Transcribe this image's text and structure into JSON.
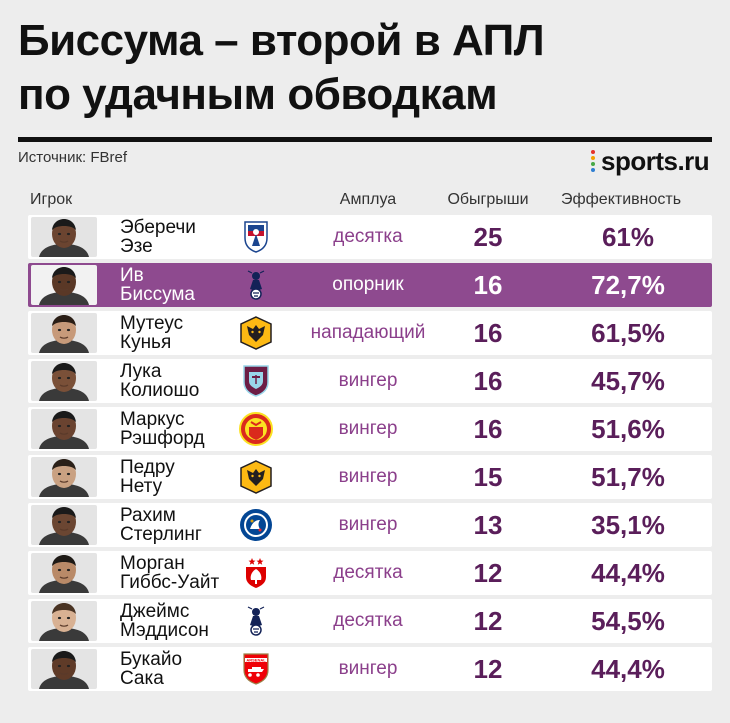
{
  "title": {
    "line1": "Биссума – второй в АПЛ",
    "line2": "по удачным обводкам"
  },
  "source": "Источник: FBref",
  "brand": {
    "name": "sports.ru",
    "dot_colors": [
      "#e5332a",
      "#f4a000",
      "#47a847",
      "#2f7fd1"
    ]
  },
  "columns": {
    "player": "Игрок",
    "role": "Амплуа",
    "dribbles": "Обыгрыши",
    "efficiency": "Эффективность"
  },
  "colors": {
    "highlight_row": "#8e4a8f",
    "value_text": "#5a1e5a",
    "role_text": "#8b3f8b"
  },
  "rows": [
    {
      "first": "Эберечи",
      "last": "Эзе",
      "club_icon": "crystal-palace-crest-icon",
      "role": "десятка",
      "dribbles": "25",
      "efficiency": "61%",
      "highlight": false
    },
    {
      "first": "Ив",
      "last": "Биссума",
      "club_icon": "tottenham-crest-icon",
      "role": "опорник",
      "dribbles": "16",
      "efficiency": "72,7%",
      "highlight": true
    },
    {
      "first": "Мутеус",
      "last": "Кунья",
      "club_icon": "wolves-crest-icon",
      "role": "нападающий",
      "dribbles": "16",
      "efficiency": "61,5%",
      "highlight": false
    },
    {
      "first": "Лука",
      "last": "Колиошо",
      "club_icon": "burnley-crest-icon",
      "role": "вингер",
      "dribbles": "16",
      "efficiency": "45,7%",
      "highlight": false
    },
    {
      "first": "Маркус",
      "last": "Рэшфорд",
      "club_icon": "manchester-united-crest-icon",
      "role": "вингер",
      "dribbles": "16",
      "efficiency": "51,6%",
      "highlight": false
    },
    {
      "first": "Педру",
      "last": "Нету",
      "club_icon": "wolves-crest-icon",
      "role": "вингер",
      "dribbles": "15",
      "efficiency": "51,7%",
      "highlight": false
    },
    {
      "first": "Рахим",
      "last": "Стерлинг",
      "club_icon": "chelsea-crest-icon",
      "role": "вингер",
      "dribbles": "13",
      "efficiency": "35,1%",
      "highlight": false
    },
    {
      "first": "Морган",
      "last": "Гиббс-Уайт",
      "club_icon": "nottingham-forest-crest-icon",
      "role": "десятка",
      "dribbles": "12",
      "efficiency": "44,4%",
      "highlight": false
    },
    {
      "first": "Джеймс",
      "last": "Мэддисон",
      "club_icon": "tottenham-crest-icon",
      "role": "десятка",
      "dribbles": "12",
      "efficiency": "54,5%",
      "highlight": false
    },
    {
      "first": "Букайо",
      "last": "Сака",
      "club_icon": "arsenal-crest-icon",
      "role": "вингер",
      "dribbles": "12",
      "efficiency": "44,4%",
      "highlight": false
    }
  ]
}
